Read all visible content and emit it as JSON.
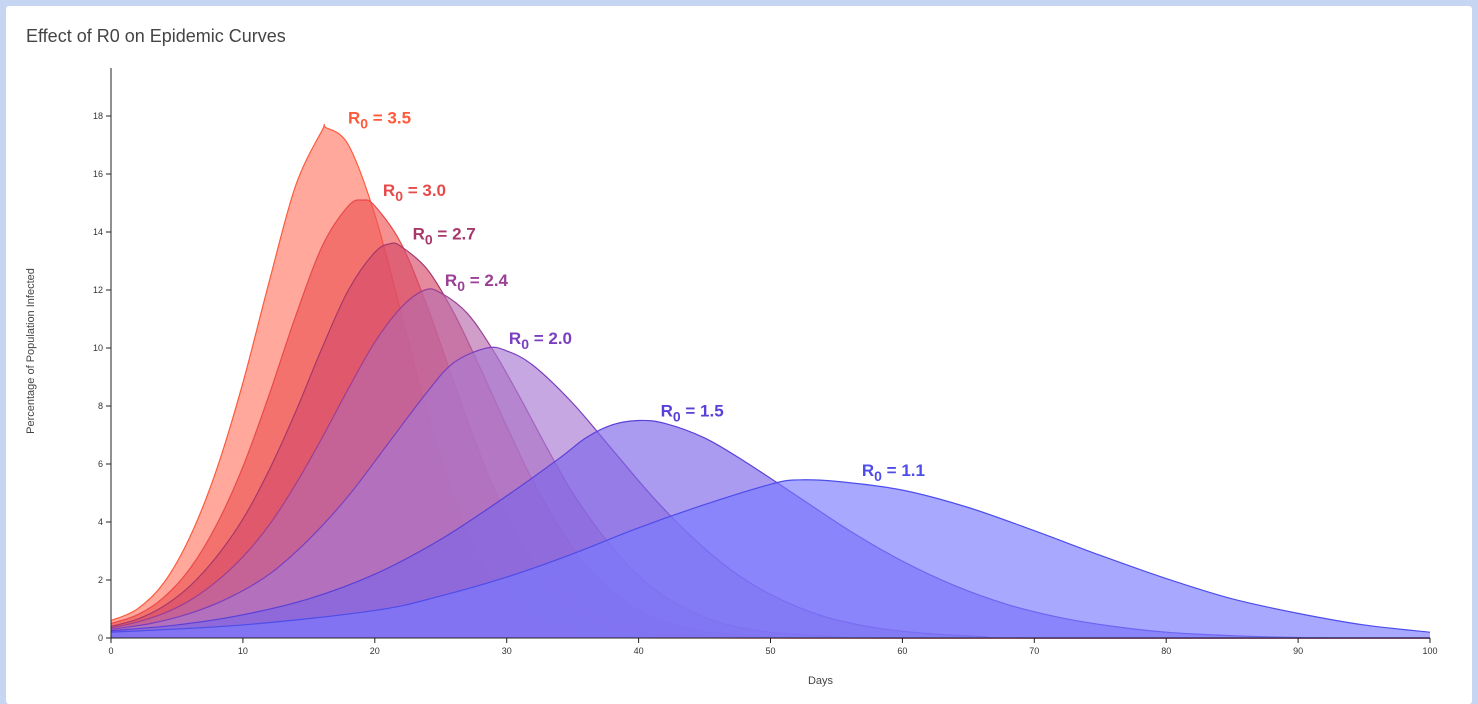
{
  "chart_title": "Effect of R0 on Epidemic Curves",
  "chart_data": {
    "type": "area",
    "title": "Effect of R0 on Epidemic Curves",
    "xlabel": "Days",
    "ylabel": "Percentage of Population Infected",
    "xlim": [
      0,
      100
    ],
    "ylim": [
      0,
      19
    ],
    "x_ticks": [
      0,
      10,
      20,
      30,
      40,
      50,
      60,
      70,
      80,
      90,
      100
    ],
    "y_ticks": [
      0,
      2,
      4,
      6,
      8,
      10,
      12,
      14,
      16,
      18
    ],
    "grid": false,
    "series": [
      {
        "label_prefix": "R",
        "label_sub": "0",
        "label_value": " = 3.5",
        "color": "#ff5a3c",
        "fill": "#ff7a66",
        "points": [
          [
            0,
            0.6
          ],
          [
            2,
            1.0
          ],
          [
            4,
            1.9
          ],
          [
            6,
            3.5
          ],
          [
            8,
            5.8
          ],
          [
            10,
            8.8
          ],
          [
            12,
            12.3
          ],
          [
            14,
            15.6
          ],
          [
            16,
            17.5
          ],
          [
            16.3,
            17.6
          ],
          [
            18,
            17.0
          ],
          [
            20,
            14.6
          ],
          [
            22,
            11.2
          ],
          [
            24,
            7.7
          ],
          [
            26,
            4.8
          ],
          [
            28,
            2.7
          ],
          [
            30,
            1.4
          ],
          [
            32,
            0.7
          ],
          [
            34,
            0.3
          ],
          [
            36,
            0.12
          ],
          [
            38,
            0.05
          ],
          [
            40,
            0.02
          ],
          [
            45,
            0.0
          ],
          [
            100,
            0.0
          ]
        ]
      },
      {
        "label_prefix": "R",
        "label_sub": "0",
        "label_value": " = 3.0",
        "color": "#e84a4a",
        "fill": "#ee5555",
        "points": [
          [
            0,
            0.5
          ],
          [
            2,
            0.8
          ],
          [
            4,
            1.4
          ],
          [
            6,
            2.4
          ],
          [
            8,
            3.9
          ],
          [
            10,
            5.9
          ],
          [
            12,
            8.4
          ],
          [
            14,
            11.1
          ],
          [
            16,
            13.5
          ],
          [
            18,
            14.9
          ],
          [
            19.1,
            15.1
          ],
          [
            20,
            14.9
          ],
          [
            22,
            13.6
          ],
          [
            24,
            11.4
          ],
          [
            26,
            8.8
          ],
          [
            28,
            6.3
          ],
          [
            30,
            4.2
          ],
          [
            32,
            2.6
          ],
          [
            34,
            1.5
          ],
          [
            36,
            0.85
          ],
          [
            38,
            0.45
          ],
          [
            40,
            0.22
          ],
          [
            44,
            0.05
          ],
          [
            50,
            0.0
          ],
          [
            100,
            0.0
          ]
        ]
      },
      {
        "label_prefix": "R",
        "label_sub": "0",
        "label_value": " = 2.7",
        "color": "#a8386a",
        "fill": "#d54a6a",
        "points": [
          [
            0,
            0.4
          ],
          [
            2,
            0.65
          ],
          [
            4,
            1.1
          ],
          [
            6,
            1.8
          ],
          [
            8,
            2.8
          ],
          [
            10,
            4.1
          ],
          [
            12,
            5.8
          ],
          [
            14,
            7.8
          ],
          [
            16,
            10.0
          ],
          [
            18,
            12.0
          ],
          [
            20,
            13.3
          ],
          [
            21.2,
            13.6
          ],
          [
            22,
            13.5
          ],
          [
            24,
            12.7
          ],
          [
            26,
            11.2
          ],
          [
            28,
            9.3
          ],
          [
            30,
            7.3
          ],
          [
            32,
            5.4
          ],
          [
            34,
            3.8
          ],
          [
            36,
            2.5
          ],
          [
            38,
            1.6
          ],
          [
            40,
            0.95
          ],
          [
            42,
            0.55
          ],
          [
            45,
            0.22
          ],
          [
            50,
            0.04
          ],
          [
            55,
            0.0
          ],
          [
            100,
            0.0
          ]
        ]
      },
      {
        "label_prefix": "R",
        "label_sub": "0",
        "label_value": " = 2.4",
        "color": "#9a3f95",
        "fill": "#b86aae",
        "points": [
          [
            0,
            0.35
          ],
          [
            2,
            0.55
          ],
          [
            4,
            0.85
          ],
          [
            6,
            1.3
          ],
          [
            8,
            1.95
          ],
          [
            10,
            2.8
          ],
          [
            12,
            3.9
          ],
          [
            14,
            5.3
          ],
          [
            16,
            6.9
          ],
          [
            18,
            8.6
          ],
          [
            20,
            10.2
          ],
          [
            22,
            11.4
          ],
          [
            23.8,
            12.0
          ],
          [
            25,
            11.9
          ],
          [
            27,
            11.2
          ],
          [
            29,
            9.9
          ],
          [
            31,
            8.3
          ],
          [
            33,
            6.6
          ],
          [
            35,
            5.0
          ],
          [
            37,
            3.7
          ],
          [
            39,
            2.6
          ],
          [
            41,
            1.75
          ],
          [
            43,
            1.15
          ],
          [
            46,
            0.55
          ],
          [
            50,
            0.2
          ],
          [
            55,
            0.05
          ],
          [
            60,
            0.0
          ],
          [
            100,
            0.0
          ]
        ]
      },
      {
        "label_prefix": "R",
        "label_sub": "0",
        "label_value": " = 2.0",
        "color": "#7a3fc0",
        "fill": "#a878d2",
        "points": [
          [
            0,
            0.3
          ],
          [
            3,
            0.5
          ],
          [
            6,
            0.85
          ],
          [
            9,
            1.4
          ],
          [
            12,
            2.2
          ],
          [
            15,
            3.4
          ],
          [
            18,
            4.9
          ],
          [
            21,
            6.7
          ],
          [
            24,
            8.5
          ],
          [
            26,
            9.5
          ],
          [
            28.5,
            10.0
          ],
          [
            30,
            9.9
          ],
          [
            32,
            9.4
          ],
          [
            35,
            8.1
          ],
          [
            38,
            6.5
          ],
          [
            41,
            4.9
          ],
          [
            44,
            3.5
          ],
          [
            47,
            2.35
          ],
          [
            50,
            1.5
          ],
          [
            54,
            0.75
          ],
          [
            58,
            0.35
          ],
          [
            62,
            0.15
          ],
          [
            66,
            0.05
          ],
          [
            70,
            0.0
          ],
          [
            100,
            0.0
          ]
        ]
      },
      {
        "label_prefix": "R",
        "label_sub": "0",
        "label_value": " = 1.5",
        "color": "#5a40d8",
        "fill": "#7d66e8",
        "points": [
          [
            0,
            0.25
          ],
          [
            5,
            0.45
          ],
          [
            10,
            0.8
          ],
          [
            15,
            1.35
          ],
          [
            20,
            2.2
          ],
          [
            25,
            3.4
          ],
          [
            30,
            4.9
          ],
          [
            34,
            6.2
          ],
          [
            36,
            6.9
          ],
          [
            38,
            7.35
          ],
          [
            40,
            7.5
          ],
          [
            42,
            7.4
          ],
          [
            45,
            6.9
          ],
          [
            48,
            6.1
          ],
          [
            52,
            4.9
          ],
          [
            56,
            3.7
          ],
          [
            60,
            2.65
          ],
          [
            64,
            1.8
          ],
          [
            68,
            1.15
          ],
          [
            72,
            0.7
          ],
          [
            76,
            0.4
          ],
          [
            80,
            0.2
          ],
          [
            85,
            0.08
          ],
          [
            90,
            0.02
          ],
          [
            100,
            0.0
          ]
        ]
      },
      {
        "label_prefix": "R",
        "label_sub": "0",
        "label_value": " = 1.1",
        "color": "#4d4dea",
        "fill": "#7a7aff",
        "points": [
          [
            0,
            0.2
          ],
          [
            10,
            0.45
          ],
          [
            20,
            0.95
          ],
          [
            25,
            1.45
          ],
          [
            30,
            2.1
          ],
          [
            35,
            2.9
          ],
          [
            40,
            3.8
          ],
          [
            45,
            4.6
          ],
          [
            50,
            5.3
          ],
          [
            52,
            5.45
          ],
          [
            55,
            5.4
          ],
          [
            60,
            5.1
          ],
          [
            65,
            4.5
          ],
          [
            70,
            3.7
          ],
          [
            75,
            2.85
          ],
          [
            80,
            2.05
          ],
          [
            85,
            1.35
          ],
          [
            90,
            0.85
          ],
          [
            95,
            0.45
          ],
          [
            100,
            0.2
          ]
        ]
      }
    ]
  }
}
